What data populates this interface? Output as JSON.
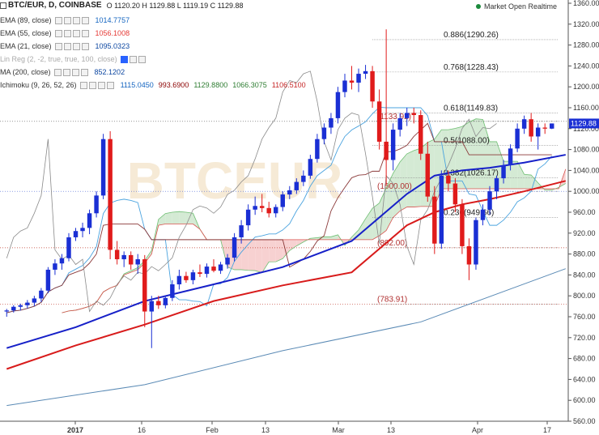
{
  "header": {
    "symbol": "BTC/EUR, D, COINBASE",
    "ohlc": "O 1120.20 H 1129.88 L 1119.19 C 1129.88"
  },
  "status": {
    "label": "Market Open Realtime"
  },
  "indicators": [
    {
      "name": "EMA (89, close)",
      "value": "1014.7757",
      "color": "#1565c0"
    },
    {
      "name": "EMA (55, close)",
      "value": "1056.1008",
      "color": "#e53935"
    },
    {
      "name": "EMA (21, close)",
      "value": "1095.0323",
      "color": "#0d47a1"
    },
    {
      "name": "Lin Reg (2, -2, true, true, 100, close)",
      "value": "",
      "color": "#999999"
    },
    {
      "name": "MA (200, close)",
      "value": "852.1202",
      "color": "#0d47a1"
    },
    {
      "name": "Ichimoku (9, 26, 52, 26)",
      "values": [
        "1115.0450",
        "993.6900",
        "1129.8800",
        "1066.3075",
        "1106.5100"
      ],
      "colors": [
        "#1565c0",
        "#8b0000",
        "#2e7d32",
        "#2e7d32",
        "#c62828"
      ]
    }
  ],
  "watermark": "BTCEUR",
  "colors": {
    "up": "#1a2fd4",
    "down": "#e01b1b",
    "ema21": "#1620c8",
    "ema55": "#d81b1b",
    "ma200": "#5a8ab5",
    "kumo_up": "#cfe8cf",
    "kumo_down": "#f6cccc",
    "tenkan": "#4aa3df",
    "kijun": "#8b3a3a",
    "lagging": "#8a8a8a"
  },
  "chart_data": {
    "type": "candlestick",
    "y_axis": {
      "min": 560,
      "max": 1360,
      "ticks": [
        1360,
        1320,
        1280,
        1240,
        1200,
        1160,
        1120,
        1080,
        1040,
        1000,
        960,
        920,
        880,
        840,
        800,
        760,
        720,
        680,
        640,
        600,
        560
      ]
    },
    "x_axis": {
      "labels": [
        "2017",
        "16",
        "Feb",
        "13",
        "Mar",
        "13",
        "Apr",
        "17"
      ]
    },
    "last_price": "1129.88",
    "fibonacci": [
      {
        "label": "0.886(1290.26)",
        "value": 1290.26
      },
      {
        "label": "0.768(1228.43)",
        "value": 1228.43
      },
      {
        "label": "0.618(1149.83)",
        "value": 1149.83
      },
      {
        "label": "(1133.92)",
        "value": 1133.92
      },
      {
        "label": "0.5(1088.00)",
        "value": 1088.0
      },
      {
        "label": "0.382(1026.17)",
        "value": 1026.17
      },
      {
        "label": "(1000.00)",
        "value": 1000.0
      },
      {
        "label": "0.236(949.66)",
        "value": 949.66
      },
      {
        "label": "(892.00)",
        "value": 892.0
      },
      {
        "label": "(783.91)",
        "value": 783.91
      }
    ],
    "candles": [
      [
        770,
        775,
        760,
        772
      ],
      [
        772,
        782,
        768,
        779
      ],
      [
        779,
        785,
        772,
        782
      ],
      [
        782,
        792,
        776,
        787
      ],
      [
        787,
        800,
        780,
        795
      ],
      [
        795,
        815,
        788,
        810
      ],
      [
        810,
        855,
        805,
        850
      ],
      [
        850,
        870,
        840,
        862
      ],
      [
        862,
        880,
        850,
        872
      ],
      [
        872,
        920,
        866,
        912
      ],
      [
        912,
        930,
        905,
        924
      ],
      [
        924,
        940,
        912,
        930
      ],
      [
        930,
        965,
        918,
        958
      ],
      [
        958,
        1000,
        950,
        992
      ],
      [
        992,
        1110,
        985,
        1100
      ],
      [
        1100,
        1115,
        870,
        888
      ],
      [
        888,
        905,
        860,
        870
      ],
      [
        870,
        885,
        855,
        878
      ],
      [
        878,
        885,
        850,
        860
      ],
      [
        860,
        880,
        842,
        870
      ],
      [
        870,
        878,
        740,
        770
      ],
      [
        770,
        800,
        700,
        790
      ],
      [
        790,
        800,
        775,
        782
      ],
      [
        782,
        800,
        776,
        796
      ],
      [
        796,
        830,
        790,
        822
      ],
      [
        822,
        850,
        812,
        838
      ],
      [
        838,
        846,
        825,
        830
      ],
      [
        830,
        850,
        822,
        845
      ],
      [
        845,
        860,
        836,
        842
      ],
      [
        842,
        862,
        835,
        856
      ],
      [
        856,
        870,
        845,
        848
      ],
      [
        848,
        865,
        842,
        860
      ],
      [
        860,
        880,
        852,
        873
      ],
      [
        873,
        920,
        866,
        912
      ],
      [
        912,
        945,
        900,
        935
      ],
      [
        935,
        975,
        925,
        965
      ],
      [
        965,
        990,
        955,
        972
      ],
      [
        972,
        995,
        960,
        968
      ],
      [
        968,
        980,
        950,
        958
      ],
      [
        958,
        975,
        950,
        970
      ],
      [
        970,
        1000,
        962,
        994
      ],
      [
        994,
        1010,
        985,
        1002
      ],
      [
        1002,
        1025,
        995,
        1018
      ],
      [
        1018,
        1040,
        1010,
        1030
      ],
      [
        1030,
        1070,
        1024,
        1062
      ],
      [
        1062,
        1110,
        1055,
        1100
      ],
      [
        1100,
        1130,
        1090,
        1122
      ],
      [
        1122,
        1150,
        1110,
        1140
      ],
      [
        1140,
        1200,
        1130,
        1190
      ],
      [
        1190,
        1225,
        1180,
        1212
      ],
      [
        1212,
        1240,
        1195,
        1208
      ],
      [
        1208,
        1235,
        1190,
        1225
      ],
      [
        1225,
        1242,
        1215,
        1230
      ],
      [
        1230,
        1240,
        1160,
        1172
      ],
      [
        1172,
        1195,
        1080,
        1095
      ],
      [
        1095,
        1310,
        1010,
        1060
      ],
      [
        1060,
        1130,
        1040,
        1118
      ],
      [
        1118,
        1150,
        1105,
        1140
      ],
      [
        1140,
        1160,
        1125,
        1150
      ],
      [
        1150,
        1160,
        1130,
        1146
      ],
      [
        1146,
        1155,
        1060,
        1072
      ],
      [
        1072,
        1095,
        980,
        990
      ],
      [
        990,
        1010,
        880,
        900
      ],
      [
        900,
        1040,
        890,
        1030
      ],
      [
        1030,
        1040,
        1000,
        1015
      ],
      [
        1015,
        1025,
        960,
        975
      ],
      [
        975,
        985,
        880,
        895
      ],
      [
        895,
        910,
        830,
        860
      ],
      [
        860,
        950,
        850,
        945
      ],
      [
        945,
        975,
        935,
        965
      ],
      [
        965,
        1010,
        955,
        1000
      ],
      [
        1000,
        1030,
        985,
        1025
      ],
      [
        1025,
        1060,
        1015,
        1050
      ],
      [
        1050,
        1090,
        1040,
        1082
      ],
      [
        1082,
        1130,
        1075,
        1120
      ],
      [
        1120,
        1145,
        1110,
        1138
      ],
      [
        1138,
        1150,
        1095,
        1105
      ],
      [
        1105,
        1130,
        1080,
        1122
      ],
      [
        1122,
        1130,
        1110,
        1120
      ],
      [
        1120,
        1129.88,
        1119.19,
        1129.88
      ]
    ],
    "ema21": [
      [
        0,
        700
      ],
      [
        10,
        740
      ],
      [
        20,
        790
      ],
      [
        30,
        822
      ],
      [
        40,
        855
      ],
      [
        50,
        905
      ],
      [
        58,
        995
      ],
      [
        62,
        1030
      ],
      [
        66,
        1040
      ],
      [
        70,
        1045
      ],
      [
        75,
        1055
      ],
      [
        81,
        1070
      ]
    ],
    "ema55": [
      [
        0,
        660
      ],
      [
        10,
        705
      ],
      [
        20,
        745
      ],
      [
        30,
        790
      ],
      [
        40,
        820
      ],
      [
        50,
        845
      ],
      [
        58,
        935
      ],
      [
        62,
        960
      ],
      [
        66,
        975
      ],
      [
        70,
        985
      ],
      [
        75,
        1000
      ],
      [
        81,
        1020
      ]
    ],
    "ma200": [
      [
        0,
        590
      ],
      [
        20,
        630
      ],
      [
        40,
        695
      ],
      [
        60,
        750
      ],
      [
        81,
        852
      ]
    ]
  }
}
